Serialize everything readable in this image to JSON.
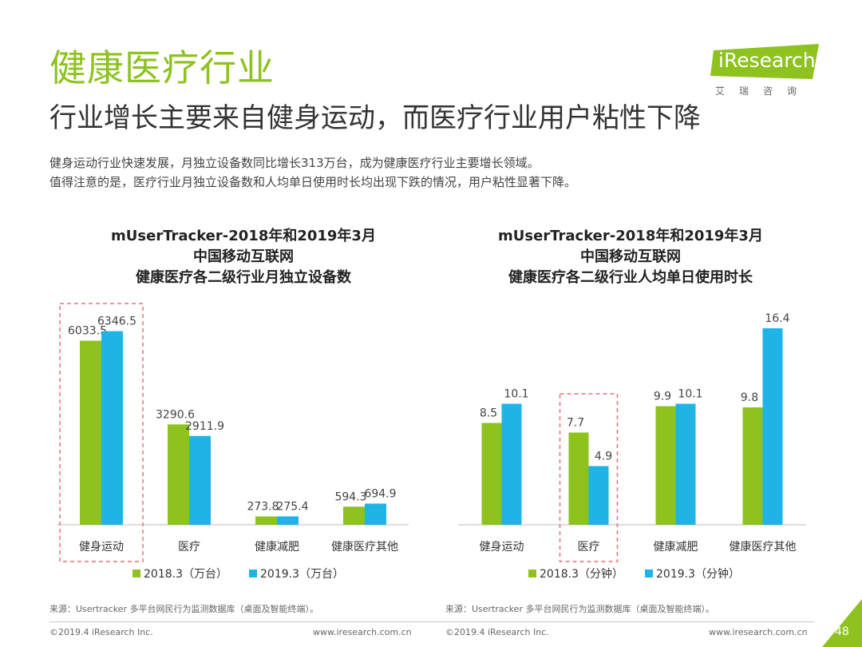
{
  "header": {
    "title": "健康医疗行业",
    "subtitle": "行业增长主要来自健身运动，而医疗行业用户粘性下降",
    "desc_line1": "健身运动行业快速发展，月独立设备数同比增长313万台，成为健康医疗行业主要增长领域。",
    "desc_line2": "值得注意的是，医疗行业月独立设备数和人均单日使用时长均出现下跌的情况，用户粘性显著下降。"
  },
  "logo": {
    "text": "iResearch",
    "sub": "艾瑞咨询"
  },
  "colors": {
    "green": "#8dc21f",
    "blue": "#1eb4e6",
    "dashed": "#e57373"
  },
  "chart_data": [
    {
      "type": "bar",
      "title_lines": [
        "mUserTracker-2018年和2019年3月",
        "中国移动互联网",
        "健康医疗各二级行业月独立设备数"
      ],
      "categories": [
        "健身运动",
        "医疗",
        "健康减肥",
        "健康医疗其他"
      ],
      "series": [
        {
          "name": "2018.3（万台）",
          "values": [
            6033.5,
            3290.6,
            273.8,
            594.3
          ],
          "labels": [
            "6033.5",
            "3290.6",
            "273.8",
            "594.3"
          ]
        },
        {
          "name": "2019.3（万台）",
          "values": [
            6346.5,
            2911.9,
            275.4,
            694.9
          ],
          "labels": [
            "6346.5",
            "2911.9",
            "275.4",
            "694.9"
          ]
        }
      ],
      "highlight_category": "健身运动",
      "legend": "bottom"
    },
    {
      "type": "bar",
      "title_lines": [
        "mUserTracker-2018年和2019年3月",
        "中国移动互联网",
        "健康医疗各二级行业人均单日使用时长"
      ],
      "categories": [
        "健身运动",
        "医疗",
        "健康减肥",
        "健康医疗其他"
      ],
      "series": [
        {
          "name": "2018.3（分钟）",
          "values": [
            8.5,
            7.7,
            9.9,
            9.8
          ],
          "labels": [
            "8.5",
            "7.7",
            "9.9",
            "9.8"
          ]
        },
        {
          "name": "2019.3（分钟）",
          "values": [
            10.1,
            4.9,
            10.1,
            16.4
          ],
          "labels": [
            "10.1",
            "4.9",
            "10.1",
            "16.4"
          ]
        }
      ],
      "highlight_category": "医疗",
      "legend": "bottom"
    }
  ],
  "source_text": "来源：Usertracker 多平台网民行为监测数据库（桌面及智能终端）。",
  "footer": {
    "copyright": "©2019.4 iResearch Inc.",
    "url": "www.iresearch.com.cn",
    "page": "48"
  }
}
